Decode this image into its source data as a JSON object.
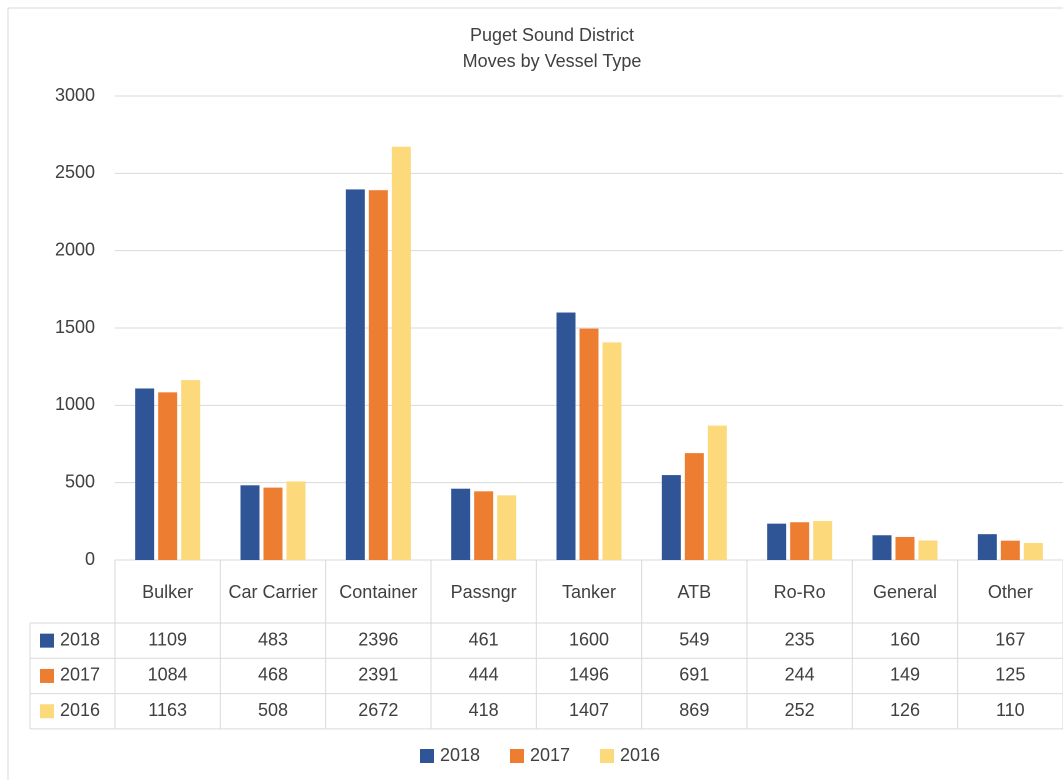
{
  "chart_data": {
    "type": "bar",
    "title": "Puget Sound District",
    "subtitle": "Moves by Vessel Type",
    "categories": [
      "Bulker",
      "Car Carrier",
      "Container",
      "Passngr",
      "Tanker",
      "ATB",
      "Ro-Ro",
      "General",
      "Other"
    ],
    "series": [
      {
        "name": "2018",
        "color": "#2f5597",
        "values": [
          1109,
          483,
          2396,
          461,
          1600,
          549,
          235,
          160,
          167
        ]
      },
      {
        "name": "2017",
        "color": "#ed7d31",
        "values": [
          1084,
          468,
          2391,
          444,
          1496,
          691,
          244,
          149,
          125
        ]
      },
      {
        "name": "2016",
        "color": "#fcd97a",
        "values": [
          1163,
          508,
          2672,
          418,
          1407,
          869,
          252,
          126,
          110
        ]
      }
    ],
    "ylim": [
      0,
      3000
    ],
    "yticks": [
      0,
      500,
      1000,
      1500,
      2000,
      2500,
      3000
    ],
    "grid": true,
    "legend": "bottom",
    "data_table": true
  }
}
